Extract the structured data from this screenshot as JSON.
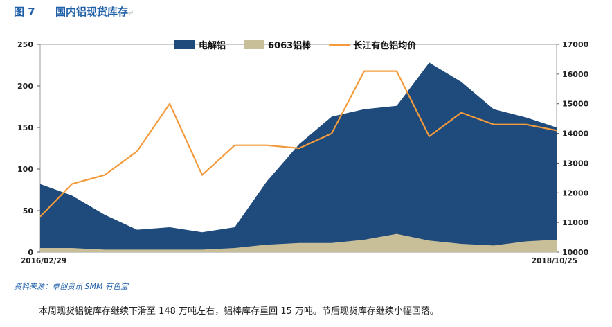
{
  "figure": {
    "label": "图 7",
    "title": "国内铝现货库存",
    "return_mark": "↵"
  },
  "source": "资料来源：卓创资讯   SMM  有色宝",
  "footnote": "本周现货铝锭库存继续下滑至 148 万吨左右，铝棒库存重回 15 万吨。节后现货库存继续小幅回落。",
  "chart_data": {
    "type": "area",
    "x_start_label": "2016/02/29",
    "x_end_label": "2018/10/25",
    "x_range": [
      "2016/02/29",
      "2018/10/25"
    ],
    "x": [
      "2016-02-29",
      "2016-04-29",
      "2016-06-29",
      "2016-08-29",
      "2016-10-29",
      "2016-12-29",
      "2017-02-28",
      "2017-04-29",
      "2017-06-29",
      "2017-08-29",
      "2017-10-29",
      "2017-12-29",
      "2018-02-28",
      "2018-04-29",
      "2018-06-29",
      "2018-08-29",
      "2018-10-25"
    ],
    "y_left": {
      "ticks": [
        0,
        50,
        100,
        150,
        200,
        250
      ],
      "range": [
        0,
        250
      ]
    },
    "y_right": {
      "ticks": [
        10000,
        11000,
        12000,
        13000,
        14000,
        15000,
        16000,
        17000
      ],
      "range": [
        10000,
        17000
      ]
    },
    "legend_position": "top",
    "series": [
      {
        "name": "电解铝",
        "type": "area",
        "axis": "left",
        "color": "#1F4A7C",
        "values": [
          82,
          68,
          45,
          27,
          30,
          24,
          30,
          85,
          130,
          163,
          172,
          176,
          228,
          205,
          172,
          162,
          150
        ]
      },
      {
        "name": "6063铝棒",
        "type": "area",
        "axis": "left",
        "color": "#C8BE98",
        "values": [
          5,
          5,
          3,
          3,
          3,
          3,
          5,
          9,
          11,
          11,
          15,
          22,
          14,
          10,
          8,
          13,
          15
        ]
      },
      {
        "name": "长江有色铝均价",
        "type": "line",
        "axis": "right",
        "color": "#F39B3C",
        "values": [
          11200,
          12300,
          12600,
          13400,
          15000,
          12600,
          13600,
          13600,
          13500,
          14000,
          16100,
          16100,
          13900,
          14700,
          14300,
          14300,
          14100
        ]
      }
    ]
  }
}
